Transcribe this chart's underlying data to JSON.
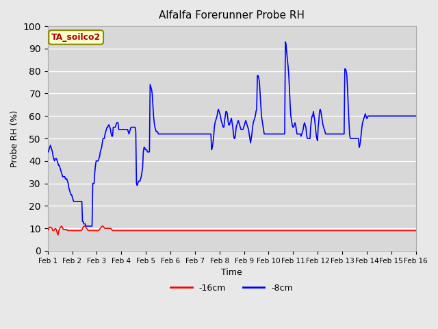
{
  "title": "Alfalfa Forerunner Probe RH",
  "xlabel": "Time",
  "ylabel": "Probe RH (%)",
  "ylim": [
    0,
    100
  ],
  "yticks": [
    0,
    10,
    20,
    30,
    40,
    50,
    60,
    70,
    80,
    90,
    100
  ],
  "background_color": "#e8e8e8",
  "plot_bg_color": "#d8d8d8",
  "grid_color": "#ffffff",
  "annotation_text": "TA_soilco2",
  "annotation_color": "#aa0000",
  "annotation_bg": "#ffffcc",
  "annotation_border": "#888800",
  "legend_labels": [
    "-16cm",
    "-8cm"
  ],
  "legend_colors": [
    "#ff0000",
    "#0000ff"
  ],
  "x_tick_labels": [
    "Feb 1",
    "Feb 2",
    "Feb 3",
    "Feb 4",
    "Feb 5",
    "Feb 6",
    "Feb 7",
    "Feb 8",
    "Feb 9",
    "Feb 10",
    "Feb 11",
    "Feb 12",
    "Feb 13",
    "Feb 14",
    "Feb 15",
    "Feb 16"
  ],
  "n_points": 15,
  "red_series": [
    9.0,
    9.5,
    10.5,
    10.5,
    10.5,
    10.0,
    9.0,
    9.0,
    9.5,
    10.0,
    9.5,
    8.0,
    7.0,
    9.0,
    10.0,
    10.5,
    11.0,
    10.5,
    9.5,
    9.5,
    9.5,
    9.5,
    9.5,
    9.0,
    9.0,
    9.0,
    9.0,
    9.0,
    9.0,
    9.0,
    9.0,
    9.0,
    9.0,
    9.0,
    9.0,
    9.0,
    9.0,
    9.0,
    9.0,
    9.0,
    9.5,
    10.5,
    11.0,
    11.0,
    10.5,
    10.0,
    9.5,
    9.0,
    9.0,
    9.0,
    9.0,
    9.0,
    9.0,
    9.0,
    9.0,
    9.0,
    9.0,
    9.0,
    9.0,
    9.0,
    9.5,
    10.0,
    10.5,
    11.0,
    11.0,
    10.5,
    10.0,
    10.0,
    10.0,
    10.0,
    10.0,
    10.0,
    10.0,
    10.0,
    9.5,
    9.0,
    9.0,
    9.0,
    9.0,
    9.0,
    9.0,
    9.0,
    9.0,
    9.0,
    9.0,
    9.0,
    9.0,
    9.0,
    9.0,
    9.0,
    9.0,
    9.0,
    9.0,
    9.0,
    9.0,
    9.0,
    9.0,
    9.0,
    9.0,
    9.0,
    9.0,
    9.0,
    9.0,
    9.0,
    9.0,
    9.0,
    9.0,
    9.0,
    9.0,
    9.0,
    9.0,
    9.0,
    9.0,
    9.0,
    9.0,
    9.0,
    9.0,
    9.0,
    9.0,
    9.0,
    9.0,
    9.0,
    9.0,
    9.0,
    9.0,
    9.0,
    9.0,
    9.0,
    9.0,
    9.0,
    9.0,
    9.0,
    9.0,
    9.0,
    9.0,
    9.0,
    9.0,
    9.0,
    9.0,
    9.0,
    9.0,
    9.0,
    9.0,
    9.0,
    9.0,
    9.0,
    9.0,
    9.0,
    9.0,
    9.0,
    9.0,
    9.0,
    9.0,
    9.0,
    9.0,
    9.0,
    9.0,
    9.0,
    9.0,
    9.0,
    9.0,
    9.0,
    9.0,
    9.0,
    9.0,
    9.0,
    9.0,
    9.0,
    9.0,
    9.0,
    9.0,
    9.0,
    9.0,
    9.0,
    9.0,
    9.0,
    9.0,
    9.0,
    9.0,
    9.0,
    9.0,
    9.0,
    9.0,
    9.0,
    9.0,
    9.0,
    9.0,
    9.0,
    9.0,
    9.0,
    9.0,
    9.0,
    9.0,
    9.0,
    9.0,
    9.0,
    9.0,
    9.0,
    9.0,
    9.0,
    9.0,
    9.0,
    9.0,
    9.0,
    9.0,
    9.0,
    9.0,
    9.0,
    9.0,
    9.0,
    9.0,
    9.0,
    9.0,
    9.0,
    9.0,
    9.0,
    9.0,
    9.0,
    9.0,
    9.0,
    9.0,
    9.0,
    9.0,
    9.0,
    9.0,
    9.0,
    9.0,
    9.0,
    9.0,
    9.0,
    9.0,
    9.0,
    9.0,
    9.0,
    9.0,
    9.0,
    9.0,
    9.0,
    9.0,
    9.0,
    9.0,
    9.0,
    9.0,
    9.0,
    9.0,
    9.0,
    9.0,
    9.0,
    9.0,
    9.0,
    9.0,
    9.0,
    9.0,
    9.0,
    9.0,
    9.0,
    9.0,
    9.0,
    9.0,
    9.0,
    9.0,
    9.0,
    9.0,
    9.0,
    9.0,
    9.0,
    9.0,
    9.0,
    9.0,
    9.0,
    9.0,
    9.0,
    9.0,
    9.0,
    9.0,
    9.0,
    9.0,
    9.0,
    9.0,
    9.0,
    9.0,
    9.0,
    9.0,
    9.0,
    9.0,
    9.0,
    9.0,
    9.0,
    9.0,
    9.0,
    9.0,
    9.0,
    9.0,
    9.0,
    9.0,
    9.0,
    9.0,
    9.0,
    9.0,
    9.0,
    9.0,
    9.0,
    9.0,
    9.0,
    9.0,
    9.0,
    9.0,
    9.0,
    9.0,
    9.0,
    9.0,
    9.0,
    9.0,
    9.0,
    9.0,
    9.0,
    9.0,
    9.0,
    9.0,
    9.0,
    9.0,
    9.0,
    9.0,
    9.0,
    9.0,
    9.0,
    9.0,
    9.0,
    9.0,
    9.0,
    9.0,
    9.0,
    9.0,
    9.0,
    9.0,
    9.0,
    9.0,
    9.0,
    9.0,
    9.0,
    9.0,
    9.0,
    9.0,
    9.0,
    9.0,
    9.0,
    9.0,
    9.0,
    9.0,
    9.0,
    9.0,
    9.0,
    9.0,
    9.0,
    9.0,
    9.0,
    9.0,
    9.0,
    9.0,
    9.0,
    9.0,
    9.0,
    9.0,
    9.0,
    9.0,
    9.0,
    9.0,
    9.0,
    9.0,
    9.0,
    9.0,
    9.0,
    9.0,
    9.0,
    9.0,
    9.0,
    9.0,
    9.0,
    9.0,
    9.0,
    9.0,
    9.0,
    9.0,
    9.0,
    9.0,
    9.0,
    9.0,
    9.0,
    9.0,
    9.0,
    9.0,
    9.0,
    9.0,
    9.0,
    9.0,
    9.0,
    9.0,
    9.0,
    9.0,
    9.0,
    9.0,
    9.0,
    9.0,
    9.0,
    9.0,
    9.0,
    9.0,
    9.0,
    9.0,
    9.0,
    9.0,
    9.0,
    9.0,
    9.0,
    9.0,
    9.0,
    9.0,
    9.0,
    9.0,
    9.0,
    9.0,
    9.0,
    9.0,
    9.0,
    9.0,
    9.0,
    9.0
  ],
  "blue_series": [
    44,
    44,
    45,
    46,
    47,
    46,
    45,
    44,
    42,
    41,
    40,
    41,
    41,
    41,
    40,
    39,
    38,
    38,
    37,
    36,
    35,
    34,
    33,
    33,
    33,
    33,
    32,
    32,
    32,
    31,
    30,
    28,
    27,
    26,
    25,
    25,
    24,
    23,
    22,
    22,
    22,
    22,
    22,
    22,
    22,
    22,
    22,
    22,
    22,
    22,
    22,
    13,
    13,
    12,
    12,
    12,
    11,
    11,
    11,
    11,
    11,
    11,
    11,
    11,
    11,
    11,
    30,
    30,
    30,
    35,
    38,
    40,
    40,
    40,
    40,
    41,
    42,
    44,
    45,
    46,
    48,
    50,
    50,
    50,
    52,
    53,
    54,
    55,
    55,
    56,
    56,
    55,
    54,
    52,
    51,
    51,
    55,
    55,
    55,
    55,
    56,
    57,
    57,
    57,
    54,
    54,
    54,
    54,
    54,
    54,
    54,
    54,
    54,
    54,
    54,
    54,
    54,
    54,
    53,
    52,
    53,
    54,
    55,
    55,
    55,
    55,
    55,
    55,
    55,
    53,
    30,
    29,
    30,
    31,
    31,
    31,
    32,
    33,
    35,
    37,
    44,
    46,
    46,
    45,
    45,
    45,
    44,
    44,
    44,
    44,
    74,
    73,
    72,
    70,
    65,
    60,
    57,
    55,
    54,
    53,
    53,
    53,
    52,
    52,
    52,
    52,
    52,
    52,
    52,
    52,
    52,
    52,
    52,
    52,
    52,
    52,
    52,
    52,
    52,
    52,
    52,
    52,
    52,
    52,
    52,
    52,
    52,
    52,
    52,
    52,
    52,
    52,
    52,
    52,
    52,
    52,
    52,
    52,
    52,
    52,
    52,
    52,
    52,
    52,
    52,
    52,
    52,
    52,
    52,
    52,
    52,
    52,
    52,
    52,
    52,
    52,
    52,
    52,
    52,
    52,
    52,
    52,
    52,
    52,
    52,
    52,
    52,
    52,
    52,
    52,
    52,
    52,
    52,
    52,
    52,
    52,
    52,
    52,
    52,
    52,
    45,
    46,
    48,
    51,
    55,
    57,
    58,
    59,
    60,
    62,
    63,
    62,
    61,
    60,
    58,
    57,
    56,
    55,
    55,
    58,
    60,
    62,
    62,
    61,
    58,
    56,
    56,
    57,
    58,
    59,
    57,
    55,
    52,
    50,
    50,
    52,
    55,
    56,
    57,
    58,
    57,
    56,
    55,
    54,
    54,
    54,
    54,
    55,
    56,
    57,
    58,
    57,
    56,
    55,
    54,
    52,
    50,
    48,
    50,
    52,
    55,
    57,
    58,
    59,
    60,
    62,
    63,
    78,
    78,
    77,
    75,
    70,
    65,
    60,
    58,
    56,
    54,
    52,
    52,
    52,
    52,
    52,
    52,
    52,
    52,
    52,
    52,
    52,
    52,
    52,
    52,
    52,
    52,
    52,
    52,
    52,
    52,
    52,
    52,
    52,
    52,
    52,
    52,
    52,
    52,
    52,
    52,
    52,
    93,
    92,
    88,
    85,
    82,
    78,
    72,
    65,
    60,
    58,
    56,
    55,
    55,
    56,
    57,
    56,
    54,
    52,
    52,
    52,
    52,
    52,
    52,
    51,
    52,
    53,
    54,
    56,
    57,
    56,
    55,
    52,
    50,
    50,
    50,
    50,
    50,
    55,
    58,
    60,
    60,
    62,
    60,
    58,
    55,
    52,
    50,
    49,
    55,
    58,
    62,
    63,
    62,
    60,
    58,
    56,
    55,
    54,
    53,
    52,
    52,
    52,
    52,
    52,
    52,
    52,
    52,
    52,
    52,
    52,
    52,
    52,
    52,
    52,
    52,
    52,
    52,
    52,
    52,
    52,
    52,
    52,
    52,
    52,
    52,
    52,
    52,
    81,
    81,
    80,
    78,
    72,
    65,
    58,
    52,
    50,
    50,
    50,
    50,
    50,
    50,
    50,
    50,
    50,
    50,
    50,
    50,
    50,
    46,
    47,
    49,
    52,
    55,
    57,
    58,
    59,
    60,
    61,
    60,
    59,
    59,
    60,
    60,
    60,
    60,
    60,
    60,
    60,
    60,
    60,
    60,
    60,
    60,
    60,
    60,
    60,
    60,
    60,
    60,
    60,
    60,
    60,
    60,
    60,
    60,
    60,
    60,
    60,
    60,
    60,
    60,
    60,
    60,
    60,
    60,
    60,
    60,
    60,
    60,
    60,
    60,
    60,
    60,
    60,
    60,
    60,
    60,
    60,
    60,
    60,
    60,
    60,
    60,
    60,
    60,
    60,
    60,
    60,
    60,
    60,
    60,
    60,
    60,
    60,
    60,
    60,
    60,
    60,
    60,
    60,
    60,
    60
  ]
}
